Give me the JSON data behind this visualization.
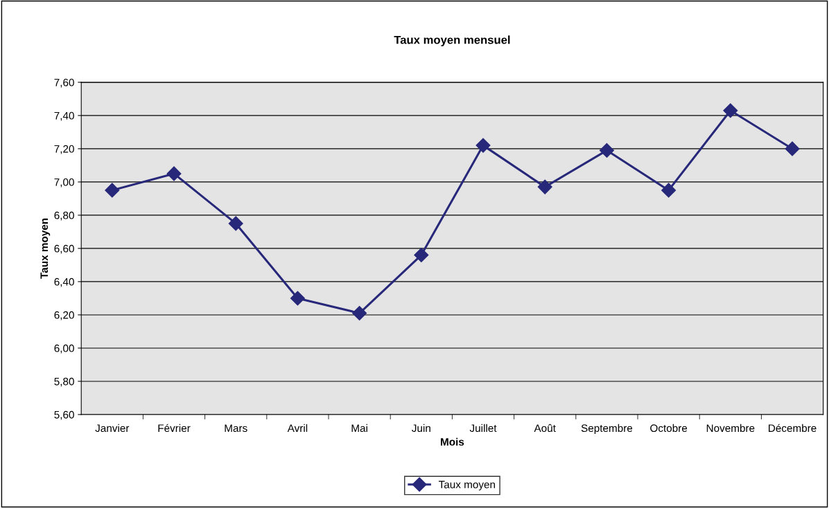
{
  "chart_data": {
    "type": "line",
    "title": "Taux moyen mensuel",
    "xlabel": "Mois",
    "ylabel": "Taux moyen",
    "categories": [
      "Janvier",
      "Février",
      "Mars",
      "Avril",
      "Mai",
      "Juin",
      "Juillet",
      "Août",
      "Septembre",
      "Octobre",
      "Novembre",
      "Décembre"
    ],
    "series": [
      {
        "name": "Taux moyen",
        "color": "#28287a",
        "values": [
          6.95,
          7.05,
          6.75,
          6.3,
          6.21,
          6.56,
          7.22,
          6.97,
          7.19,
          6.95,
          7.43,
          7.2
        ]
      }
    ],
    "ylim": [
      5.6,
      7.6
    ],
    "yticks": [
      {
        "value": 5.6,
        "label": "5,60"
      },
      {
        "value": 5.8,
        "label": "5,80"
      },
      {
        "value": 6.0,
        "label": "6,00"
      },
      {
        "value": 6.2,
        "label": "6,20"
      },
      {
        "value": 6.4,
        "label": "6,40"
      },
      {
        "value": 6.6,
        "label": "6,60"
      },
      {
        "value": 6.8,
        "label": "6,80"
      },
      {
        "value": 7.0,
        "label": "7,00"
      },
      {
        "value": 7.2,
        "label": "7,20"
      },
      {
        "value": 7.4,
        "label": "7,40"
      },
      {
        "value": 7.6,
        "label": "7,60"
      }
    ],
    "grid": "y",
    "legend": "bottom",
    "marker": "diamond",
    "line_style": "solid"
  }
}
